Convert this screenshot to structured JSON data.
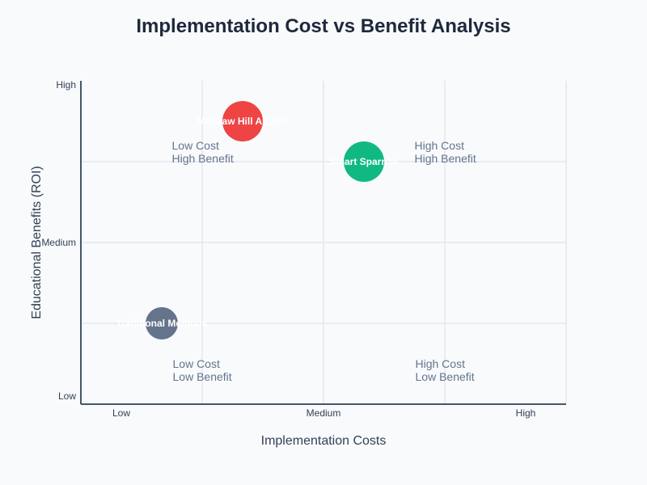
{
  "chart_data": {
    "type": "scatter",
    "title": "Implementation Cost vs Benefit Analysis",
    "xlabel": "Implementation Costs",
    "ylabel": "Educational Benefits (ROI)",
    "xlim": [
      0,
      12
    ],
    "ylim": [
      0,
      8
    ],
    "x_ticks": [
      {
        "value": 1,
        "label": "Low"
      },
      {
        "value": 6,
        "label": "Medium"
      },
      {
        "value": 11,
        "label": "High"
      }
    ],
    "y_ticks": [
      {
        "value": 0.2,
        "label": "Low"
      },
      {
        "value": 4,
        "label": "Medium"
      },
      {
        "value": 7.9,
        "label": "High"
      }
    ],
    "grid": true,
    "quadrants": [
      {
        "line1": "Low Cost",
        "line2": "High Benefit",
        "x": 2.25,
        "y": 6.3
      },
      {
        "line1": "High Cost",
        "line2": "High Benefit",
        "x": 8.25,
        "y": 6.3
      },
      {
        "line1": "Low Cost",
        "line2": "Low Benefit",
        "x": 2.27,
        "y": 0.9
      },
      {
        "line1": "High Cost",
        "line2": "Low Benefit",
        "x": 8.27,
        "y": 0.9
      }
    ],
    "points": [
      {
        "name": "McGraw Hill ALEKS",
        "x": 4,
        "y": 7,
        "size": 25,
        "color": "#ef4444"
      },
      {
        "name": "Smart Sparrow",
        "x": 7,
        "y": 6,
        "size": 25,
        "color": "#10b981"
      },
      {
        "name": "Traditional Methods",
        "x": 2,
        "y": 2,
        "size": 20,
        "color": "#64748b"
      }
    ]
  }
}
